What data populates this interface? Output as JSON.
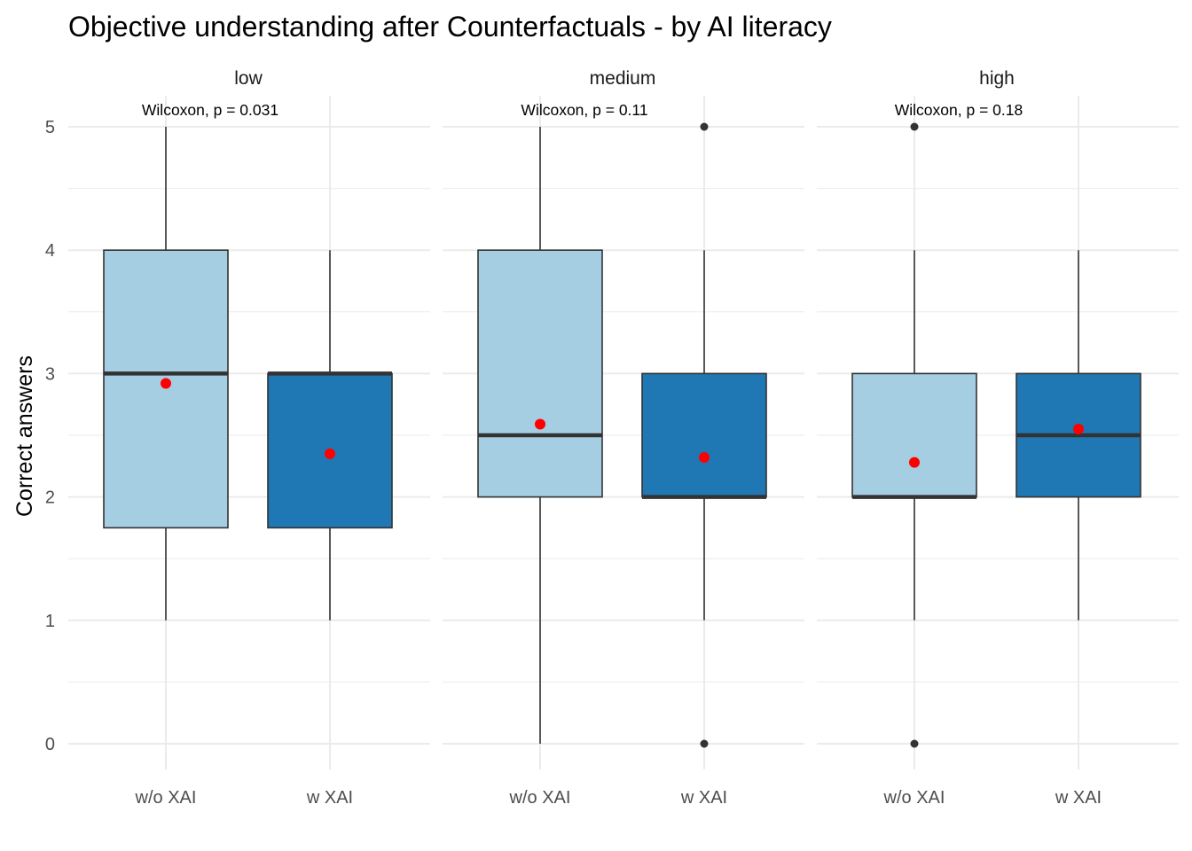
{
  "chart_data": {
    "type": "box",
    "title": "Objective understanding after Counterfactuals - by AI literacy",
    "xlabel": "",
    "ylabel": "Correct answers",
    "ylim": [
      -0.25,
      5.25
    ],
    "y_ticks": [
      0,
      1,
      2,
      3,
      4,
      5
    ],
    "grid": true,
    "legend": "none",
    "categories": [
      "w/o XAI",
      "w XAI"
    ],
    "colors": {
      "w/o XAI": "#a6cee3",
      "w XAI": "#1f78b4",
      "mean_point": "#ff0000",
      "outlier": "#333333",
      "gridline": "#ebebeb"
    },
    "panels": [
      {
        "label": "low",
        "annotation": "Wilcoxon, p = 0.031",
        "boxes": [
          {
            "group": "w/o XAI",
            "min": 1,
            "q1": 1.75,
            "median": 3,
            "q3": 4,
            "max": 5,
            "mean": 2.92,
            "outliers": []
          },
          {
            "group": "w XAI",
            "min": 1,
            "q1": 1.75,
            "median": 3,
            "q3": 3,
            "max": 4,
            "mean": 2.35,
            "outliers": []
          }
        ]
      },
      {
        "label": "medium",
        "annotation": "Wilcoxon, p = 0.11",
        "boxes": [
          {
            "group": "w/o XAI",
            "min": 0,
            "q1": 2,
            "median": 2.5,
            "q3": 4,
            "max": 5,
            "mean": 2.59,
            "outliers": []
          },
          {
            "group": "w XAI",
            "min": 1,
            "q1": 2,
            "median": 2,
            "q3": 3,
            "max": 4,
            "mean": 2.32,
            "outliers": [
              5,
              0
            ]
          }
        ]
      },
      {
        "label": "high",
        "annotation": "Wilcoxon, p = 0.18",
        "boxes": [
          {
            "group": "w/o XAI",
            "min": 1,
            "q1": 2,
            "median": 2,
            "q3": 3,
            "max": 4,
            "mean": 2.28,
            "outliers": [
              5,
              0
            ]
          },
          {
            "group": "w XAI",
            "min": 1,
            "q1": 2,
            "median": 2.5,
            "q3": 3,
            "max": 4,
            "mean": 2.55,
            "outliers": []
          }
        ]
      }
    ]
  }
}
